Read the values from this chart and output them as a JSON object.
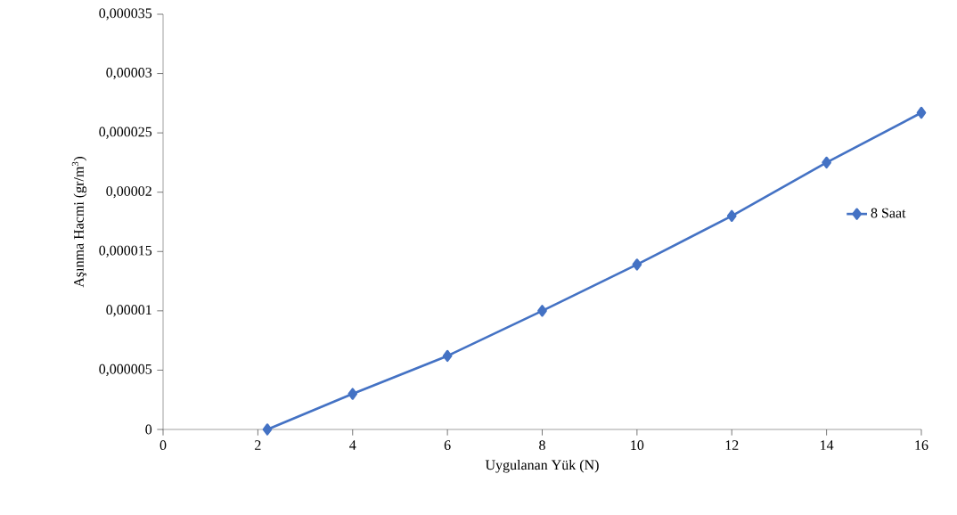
{
  "chart_data": {
    "type": "line",
    "xlabel": "Uygulanan Yük (N)",
    "ylabel": "Aşınma Hacmi (gr/m$^{3}$)",
    "x": [
      2.2,
      4,
      6,
      8,
      10,
      12,
      14,
      16
    ],
    "series": [
      {
        "name": "8 Saat",
        "color": "#4472c4",
        "values": [
          0,
          3e-06,
          6.2e-06,
          1e-05,
          1.39e-05,
          1.8e-05,
          2.25e-05,
          2.67e-05
        ]
      }
    ],
    "xlim": [
      0,
      16
    ],
    "xticks": [
      0,
      2,
      4,
      6,
      8,
      10,
      12,
      14,
      16
    ],
    "ylim": [
      0,
      3.5e-05
    ],
    "yticks": [
      {
        "value": 0,
        "label": "0"
      },
      {
        "value": 5e-06,
        "label": "0,000005"
      },
      {
        "value": 1e-05,
        "label": "0,00001"
      },
      {
        "value": 1.5e-05,
        "label": "0,000015"
      },
      {
        "value": 2e-05,
        "label": "0,00002"
      },
      {
        "value": 2.5e-05,
        "label": "0,000025"
      },
      {
        "value": 3e-05,
        "label": "0,00003"
      },
      {
        "value": 3.5e-05,
        "label": "0,000035"
      }
    ],
    "grid": false,
    "legend": "right",
    "marker": "diamond",
    "line_style": "solid"
  }
}
